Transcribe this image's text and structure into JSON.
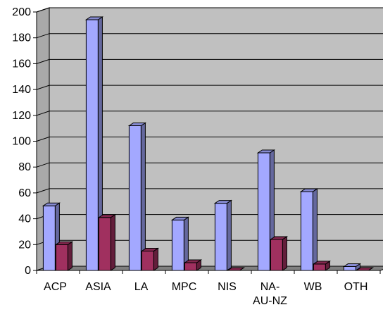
{
  "chart_data": {
    "type": "bar",
    "categories": [
      "ACP",
      "ASIA",
      "LA",
      "MPC",
      "NIS",
      "NA-AU-NZ",
      "WB",
      "OTH"
    ],
    "category_lines": [
      [
        "ACP"
      ],
      [
        "ASIA"
      ],
      [
        "LA"
      ],
      [
        "MPC"
      ],
      [
        "NIS"
      ],
      [
        "NA-",
        "AU-NZ"
      ],
      [
        "WB"
      ],
      [
        "OTH"
      ]
    ],
    "series": [
      {
        "values": [
          50,
          194,
          112,
          39,
          52,
          91,
          61,
          3
        ],
        "color": "#a3a8ff"
      },
      {
        "values": [
          20,
          41,
          15,
          6,
          0,
          24,
          5,
          0
        ],
        "color": "#a0305f"
      }
    ],
    "yticks": [
      0,
      20,
      40,
      60,
      80,
      100,
      120,
      140,
      160,
      180,
      200
    ],
    "ylim": [
      0,
      200
    ],
    "title": "",
    "xlabel": "",
    "ylabel": "",
    "grid": true,
    "legend": "none",
    "wall_color": "#c0c0c0"
  }
}
